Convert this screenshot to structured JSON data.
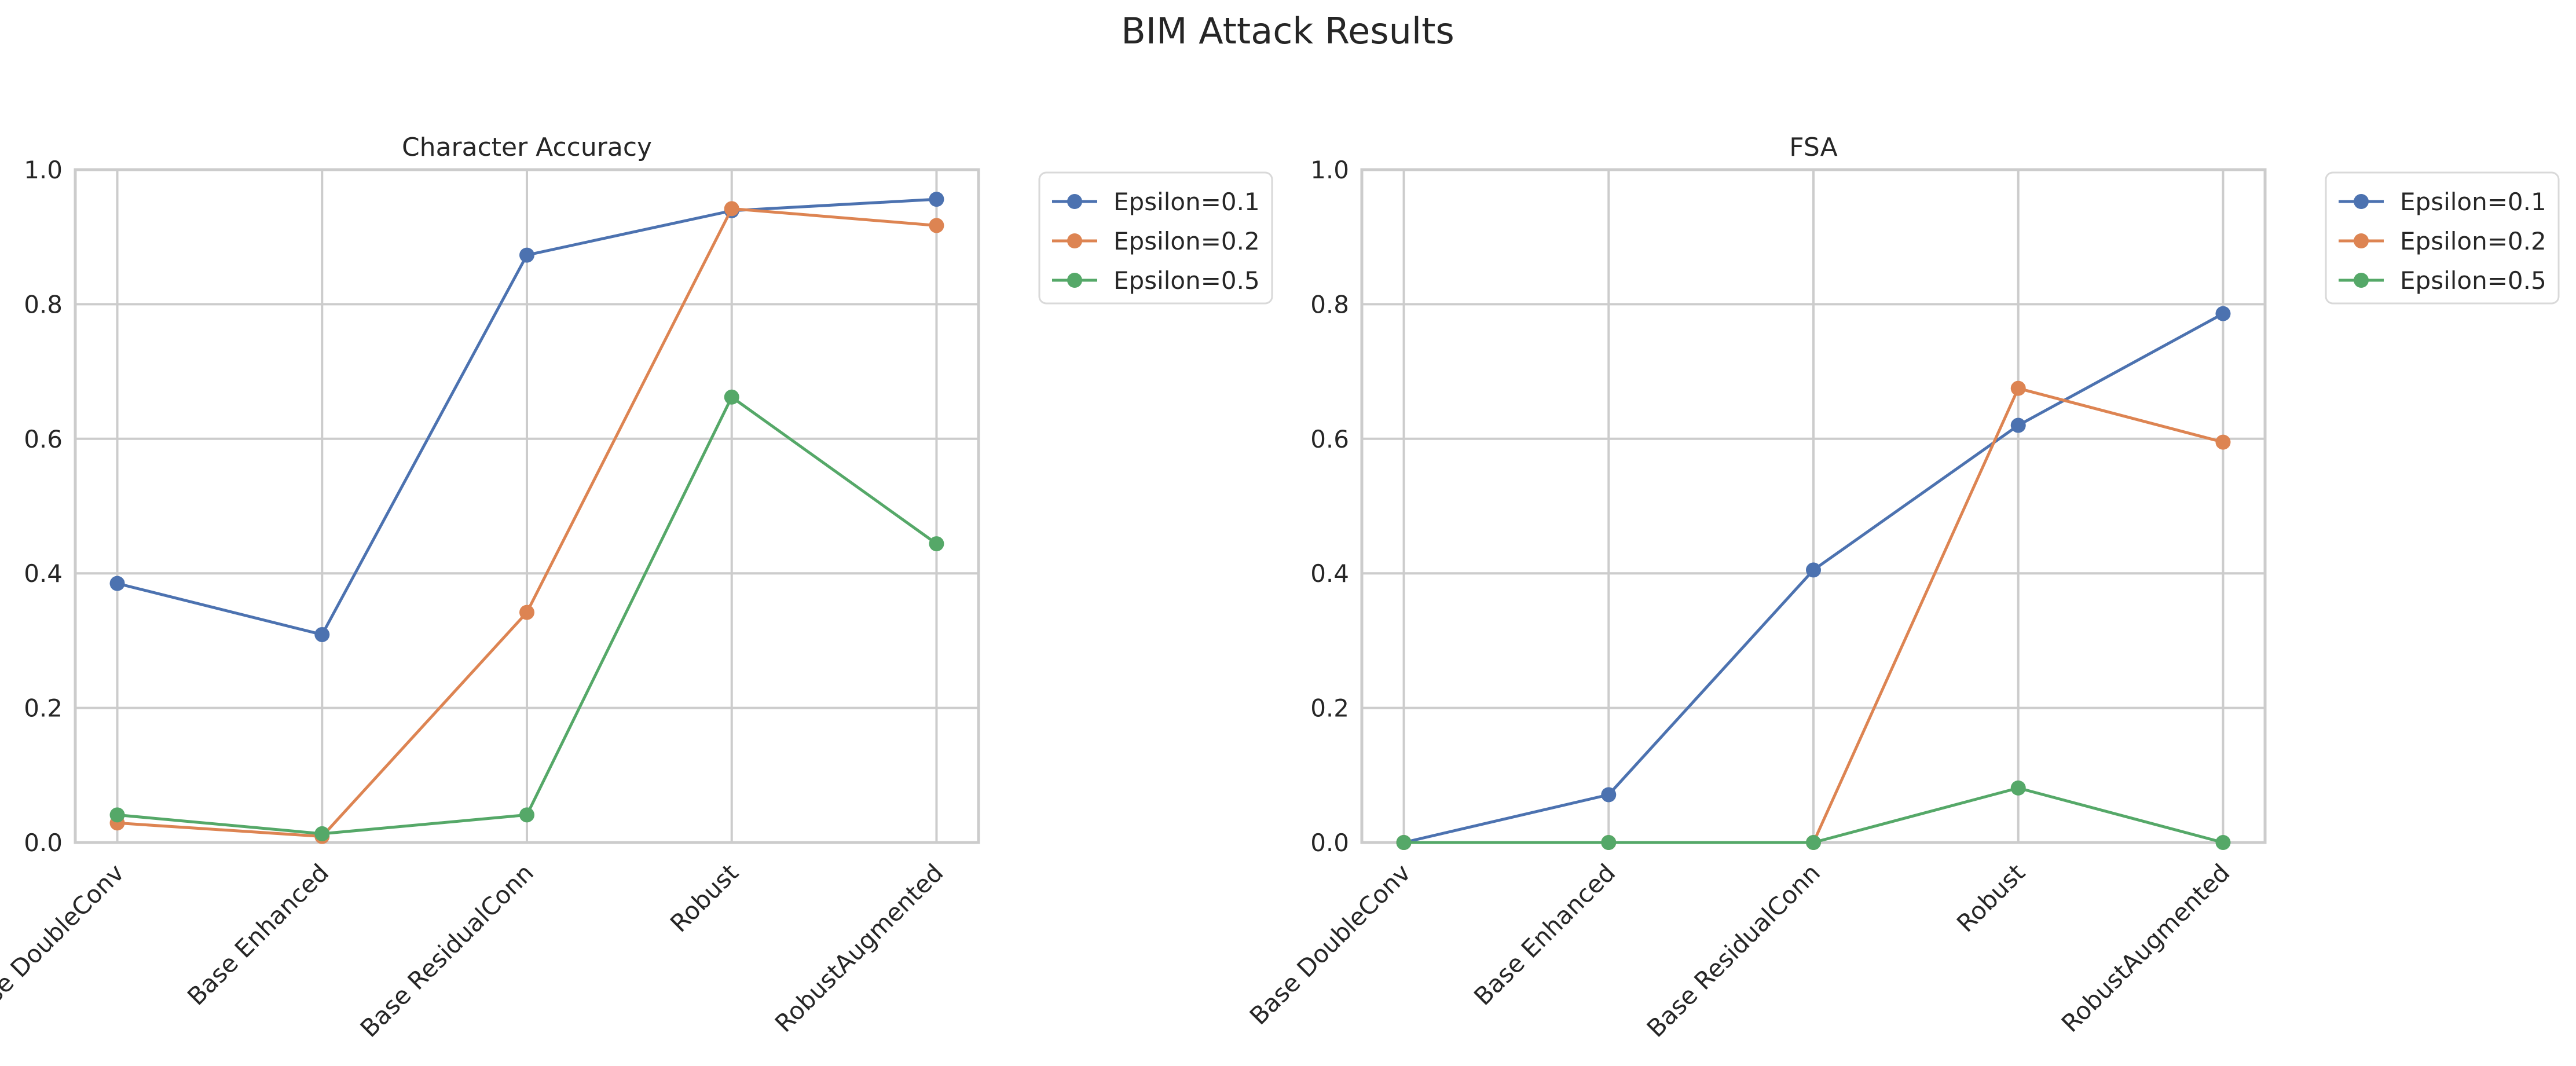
{
  "figure": {
    "title": "BIM Attack Results"
  },
  "chart_data": [
    {
      "type": "line",
      "title": "Character Accuracy",
      "xlabel": "",
      "ylabel": "",
      "categories": [
        "Base DoubleConv",
        "Base Enhanced",
        "Base ResidualConn",
        "Robust",
        "RobustAugmented"
      ],
      "ylim": [
        0,
        1.0
      ],
      "yticks": [
        "0.0",
        "0.2",
        "0.4",
        "0.6",
        "0.8",
        "1.0"
      ],
      "grid": true,
      "legend": "outside-upper-right",
      "series": [
        {
          "name": "Epsilon=0.1",
          "color": "#4c72b0",
          "values": [
            0.385,
            0.309,
            0.873,
            0.939,
            0.956
          ]
        },
        {
          "name": "Epsilon=0.2",
          "color": "#dd8452",
          "values": [
            0.029,
            0.009,
            0.342,
            0.942,
            0.917
          ]
        },
        {
          "name": "Epsilon=0.5",
          "color": "#55a868",
          "values": [
            0.041,
            0.013,
            0.041,
            0.662,
            0.444
          ]
        }
      ]
    },
    {
      "type": "line",
      "title": "FSA",
      "xlabel": "",
      "ylabel": "",
      "categories": [
        "Base DoubleConv",
        "Base Enhanced",
        "Base ResidualConn",
        "Robust",
        "RobustAugmented"
      ],
      "ylim": [
        0,
        1.0
      ],
      "yticks": [
        "0.0",
        "0.2",
        "0.4",
        "0.6",
        "0.8",
        "1.0"
      ],
      "grid": true,
      "legend": "outside-upper-right",
      "series": [
        {
          "name": "Epsilon=0.1",
          "color": "#4c72b0",
          "values": [
            0.0,
            0.071,
            0.405,
            0.62,
            0.786
          ]
        },
        {
          "name": "Epsilon=0.2",
          "color": "#dd8452",
          "values": [
            0.0,
            0.0,
            0.0,
            0.675,
            0.595
          ]
        },
        {
          "name": "Epsilon=0.5",
          "color": "#55a868",
          "values": [
            0.0,
            0.0,
            0.0,
            0.081,
            0.0
          ]
        }
      ]
    }
  ]
}
